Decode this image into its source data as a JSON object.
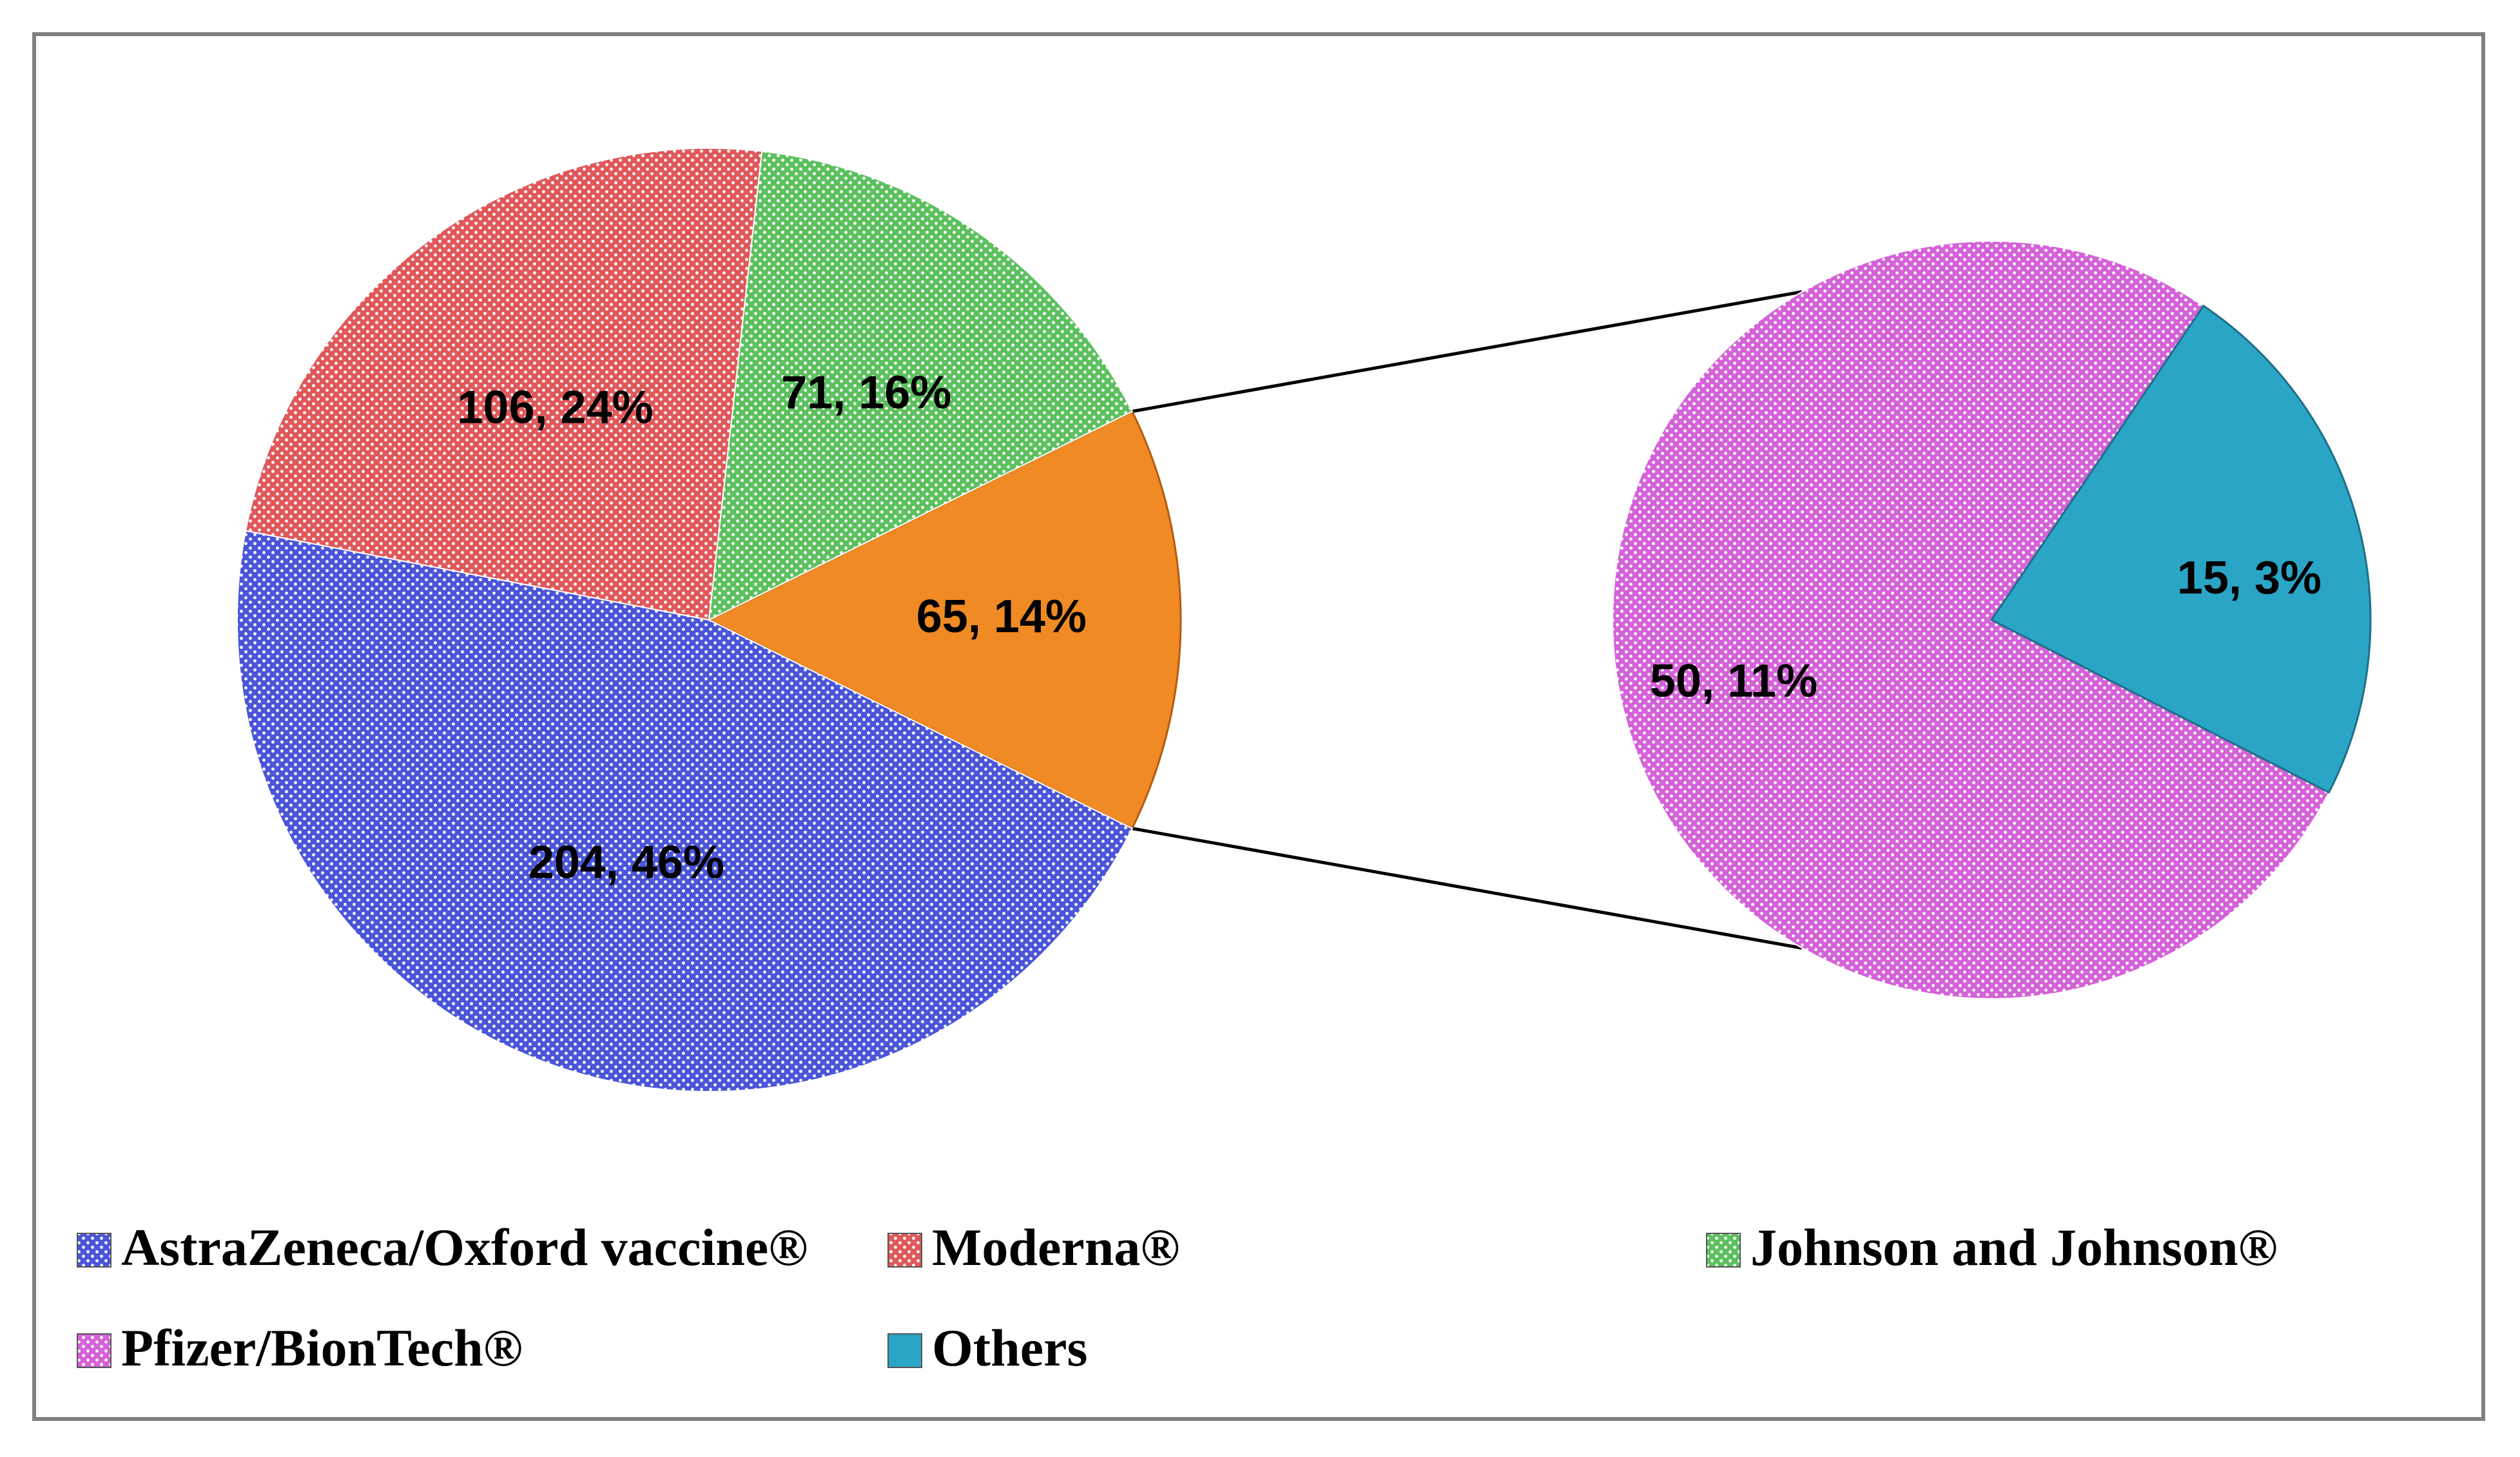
{
  "chart_data": {
    "type": "pie",
    "subtype": "pie-of-pie",
    "title": "",
    "slices": [
      {
        "name": "AstraZeneca/Oxford vaccine®",
        "value": 204,
        "percent": 46,
        "label": "204, 46%",
        "color": "#4a55d9"
      },
      {
        "name": "Moderna®",
        "value": 106,
        "percent": 24,
        "label": "106, 24%",
        "color": "#e0585a"
      },
      {
        "name": "Johnson and Johnson®",
        "value": 71,
        "percent": 16,
        "label": "71, 16%",
        "color": "#5cc05f"
      },
      {
        "name": "Other",
        "value": 65,
        "percent": 14,
        "label": "65, 14%",
        "color": "#f08a24"
      }
    ],
    "secondary": [
      {
        "name": "Pfizer/BionTech®",
        "value": 50,
        "percent": 11,
        "label": "50, 11%",
        "color": "#d462d8"
      },
      {
        "name": "Others",
        "value": 15,
        "percent": 3,
        "label": "15, 3%",
        "color": "#2aa5c6"
      }
    ],
    "legend": {
      "placement": "bottom",
      "entries": [
        {
          "name": "AstraZeneca/Oxford vaccine®",
          "color": "#4a55d9"
        },
        {
          "name": "Moderna®",
          "color": "#e0585a"
        },
        {
          "name": "Johnson and Johnson®",
          "color": "#5cc05f"
        },
        {
          "name": "Pfizer/BionTech®",
          "color": "#d462d8"
        },
        {
          "name": "Others",
          "color": "#2aa5c6"
        }
      ]
    }
  }
}
